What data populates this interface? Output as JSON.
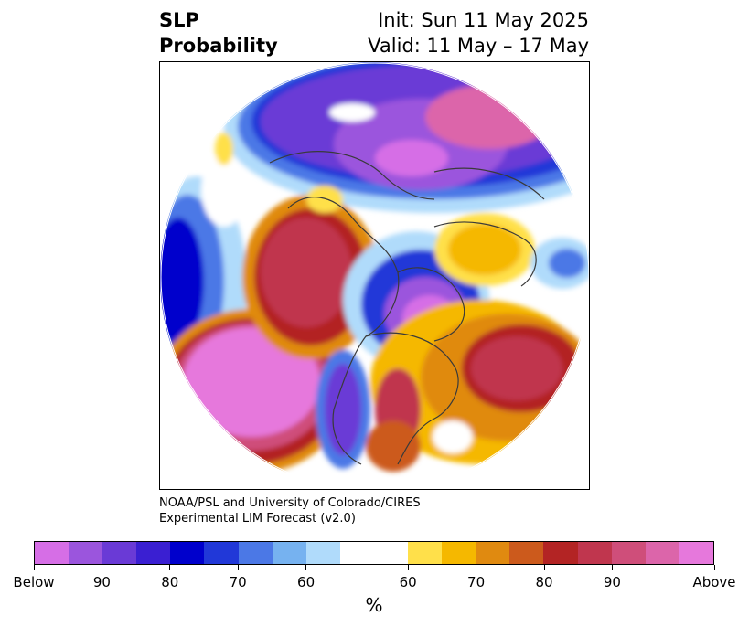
{
  "title": {
    "left_line1": "SLP",
    "left_line2": "Probability",
    "right_line1": "Init: Sun 11 May 2025",
    "right_line2": "Valid: 11 May – 17 May"
  },
  "credit": {
    "line1": "NOAA/PSL and University of Colorado/CIRES",
    "line2": "Experimental LIM Forecast (v2.0)"
  },
  "colorbar": {
    "unit": "%",
    "colors": [
      "#d66ee6",
      "#9b55dd",
      "#6a3ad6",
      "#3a1fd2",
      "#0000cc",
      "#2138d8",
      "#4b78e6",
      "#76b2f0",
      "#b0dbfb",
      "#ffffff",
      "#ffffff",
      "#ffe04a",
      "#f5b800",
      "#e08a10",
      "#cc5a1c",
      "#b32424",
      "#c0364e",
      "#cf4e7a",
      "#dc65aa",
      "#e678dc"
    ],
    "labels": [
      "Below",
      "90",
      "80",
      "70",
      "60",
      "60",
      "70",
      "80",
      "90",
      "Above"
    ]
  },
  "map": {
    "description_colors": {
      "below_strong": "#e678dc",
      "below_mid": "#6a3ad6",
      "below_weak": "#b0dbfb",
      "above_weak": "#ffe04a",
      "above_mid": "#e08a10",
      "above_strong": "#c0364e"
    }
  }
}
